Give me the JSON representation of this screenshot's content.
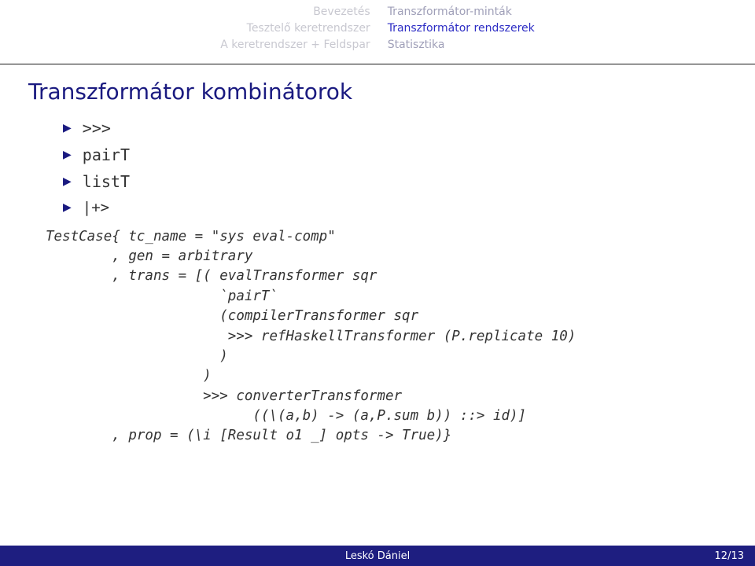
{
  "nav": {
    "left": [
      "Bevezetés",
      "Tesztelő keretrendszer",
      "A keretrendszer + Feldspar"
    ],
    "right": [
      "Transzformátor-minták",
      "Transzformátor rendszerek",
      "Statisztika"
    ],
    "activeRightIndex": 1
  },
  "title": "Transzformátor kombinátorok",
  "bullets": [
    ">>>",
    "pairT",
    "listT",
    "|+>"
  ],
  "code": "TestCase{ tc_name = \"sys eval-comp\"\n        , gen = arbitrary\n        , trans = [( evalTransformer sqr\n                     `pairT`\n                     (compilerTransformer sqr\n                      >>> refHaskellTransformer (P.replicate 10)\n                     )\n                   )\n                   >>> converterTransformer\n                         ((\\(a,b) -> (a,P.sum b)) ::> id)]\n        , prop = (\\i [Result o1 _] opts -> True)}",
  "footer": {
    "author": "Leskó Dániel",
    "page": "12/13"
  },
  "colors": {
    "navActive": "#2c2cc4",
    "title": "#1a1a80",
    "footerBg": "#1e1e80"
  }
}
